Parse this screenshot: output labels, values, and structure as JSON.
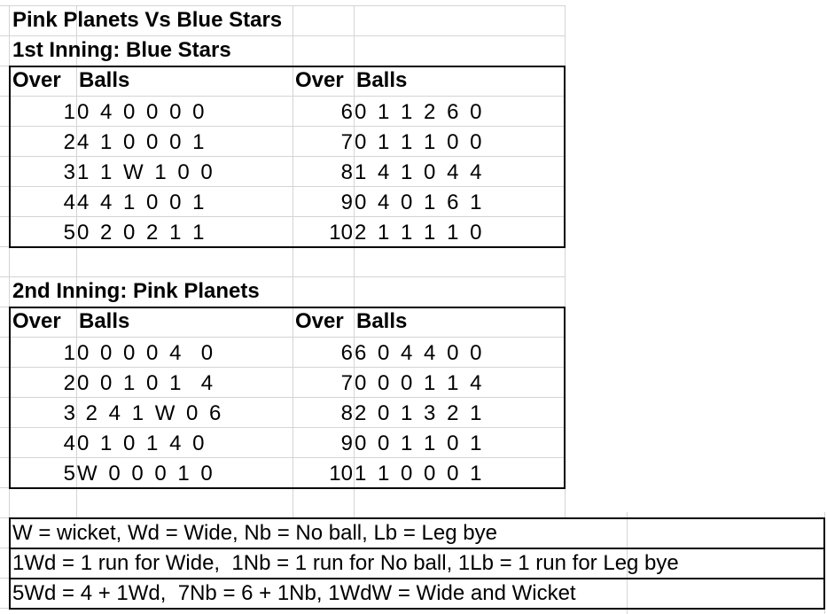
{
  "title": "Pink Planets Vs Blue Stars",
  "innings": [
    {
      "heading": "1st Inning: Blue Stars",
      "col_over": "Over",
      "col_balls": "Balls",
      "overs": [
        {
          "over": "1",
          "balls": "0 4 0 0 0 0"
        },
        {
          "over": "2",
          "balls": "4 1 0 0 0 1"
        },
        {
          "over": "3",
          "balls": "1 1 W 1 0 0"
        },
        {
          "over": "4",
          "balls": "4 4 1 0 0 1"
        },
        {
          "over": "5",
          "balls": "0 2 0 2 1 1"
        },
        {
          "over": "6",
          "balls": "0 1 1 2 6 0"
        },
        {
          "over": "7",
          "balls": "0 1 1 1 0 0"
        },
        {
          "over": "8",
          "balls": "1 4 1 0 4 4"
        },
        {
          "over": "9",
          "balls": "0 4 0 1 6 1"
        },
        {
          "over": "10",
          "balls": "2 1 1 1 1 0"
        }
      ]
    },
    {
      "heading": "2nd Inning: Pink Planets",
      "col_over": "Over",
      "col_balls": "Balls",
      "overs": [
        {
          "over": "1",
          "balls": "0 0 0 0 4  0"
        },
        {
          "over": "2",
          "balls": "0 0 1 0 1  4"
        },
        {
          "over": "3",
          "balls": " 2 4 1 W 0 6"
        },
        {
          "over": "4",
          "balls": "0 1 0 1 4 0"
        },
        {
          "over": "5",
          "balls": "W 0 0 0 1 0"
        },
        {
          "over": "6",
          "balls": "6 0 4 4 0 0"
        },
        {
          "over": "7",
          "balls": "0 0 0 1 1 4"
        },
        {
          "over": "8",
          "balls": "2 0 1 3 2 1"
        },
        {
          "over": "9",
          "balls": "0 0 1 1 0 1"
        },
        {
          "over": "10",
          "balls": "1 1 0 0 0 1"
        }
      ]
    }
  ],
  "legend": [
    "W = wicket, Wd = Wide, Nb = No ball, Lb = Leg bye",
    "1Wd = 1 run for Wide,  1Nb = 1 run for No ball, 1Lb = 1 run for Leg bye",
    "5Wd = 4 + 1Wd,  7Nb = 6 + 1Nb, 1WdW = Wide and Wicket"
  ]
}
